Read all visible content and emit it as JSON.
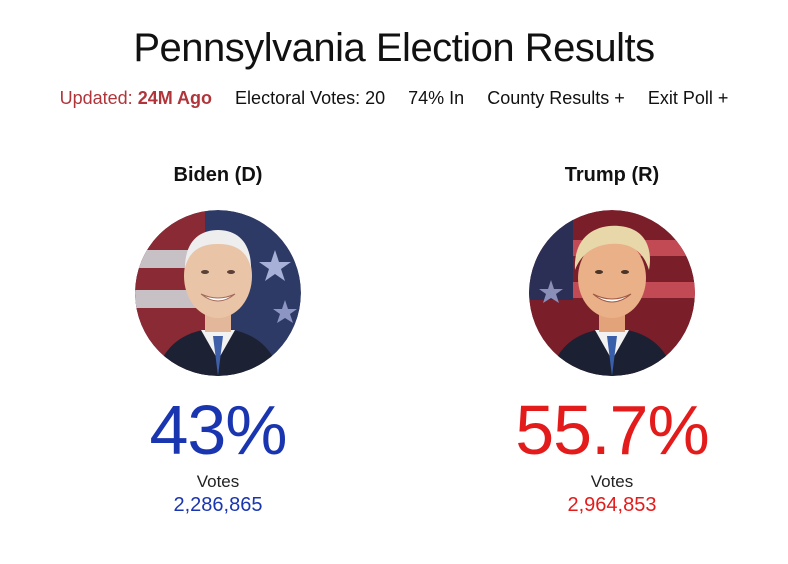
{
  "title": "Pennsylvania Election Results",
  "infobar": {
    "updated_prefix": "Updated: ",
    "updated_value": "24M Ago",
    "electoral_votes": "Electoral Votes: 20",
    "reporting": "74% In",
    "county_results": "County Results +",
    "exit_poll": "Exit Poll +"
  },
  "candidates": {
    "biden": {
      "name": "Biden (D)",
      "percent": "43%",
      "votes_label": "Votes",
      "votes": "2,286,865",
      "color": "#1a35b0"
    },
    "trump": {
      "name": "Trump (R)",
      "percent": "55.7%",
      "votes_label": "Votes",
      "votes": "2,964,853",
      "color": "#e31b1b"
    }
  }
}
